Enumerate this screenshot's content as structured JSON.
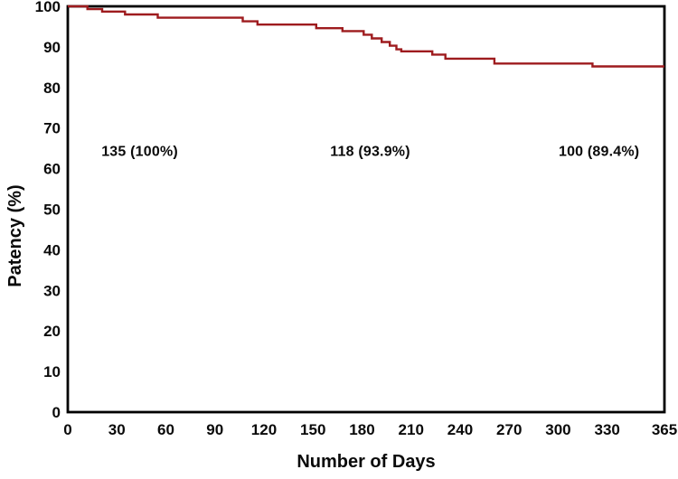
{
  "chart_data": {
    "type": "line",
    "subtype": "step-survival-curve",
    "title": "",
    "xlabel": "Number of Days",
    "ylabel": "Patency (%)",
    "xlim": [
      0,
      365
    ],
    "ylim": [
      0,
      100
    ],
    "x_ticks": [
      0,
      30,
      60,
      90,
      120,
      150,
      180,
      210,
      240,
      270,
      300,
      330,
      365
    ],
    "y_ticks": [
      0,
      10,
      20,
      30,
      40,
      50,
      60,
      70,
      80,
      90,
      100
    ],
    "grid": false,
    "legend": "none",
    "frame": "full-box",
    "series": [
      {
        "name": "patency-curve",
        "color": "#9e1b1e",
        "steps": [
          [
            0,
            100
          ],
          [
            12,
            99.3
          ],
          [
            21,
            98.7
          ],
          [
            35,
            98.0
          ],
          [
            55,
            97.2
          ],
          [
            107,
            96.3
          ],
          [
            116,
            95.5
          ],
          [
            152,
            94.6
          ],
          [
            168,
            93.9
          ],
          [
            181,
            93.0
          ],
          [
            186,
            92.1
          ],
          [
            192,
            91.2
          ],
          [
            197,
            90.3
          ],
          [
            201,
            89.4
          ],
          [
            204,
            88.9
          ],
          [
            223,
            88.1
          ],
          [
            231,
            87.1
          ],
          [
            261,
            85.9
          ],
          [
            321,
            85.2
          ],
          [
            365,
            85.2
          ]
        ]
      }
    ],
    "annotations": [
      {
        "label": "135 (100%)",
        "x_day": 44,
        "y_pct": 64.5
      },
      {
        "label": "118 (93.9%)",
        "x_day": 185,
        "y_pct": 64.5
      },
      {
        "label": "100 (89.4%)",
        "x_day": 325,
        "y_pct": 64.5
      }
    ]
  },
  "colors": {
    "curve": "#9e1b1e",
    "frame": "#000000",
    "text": "#0a0a0a",
    "background": "#ffffff"
  }
}
